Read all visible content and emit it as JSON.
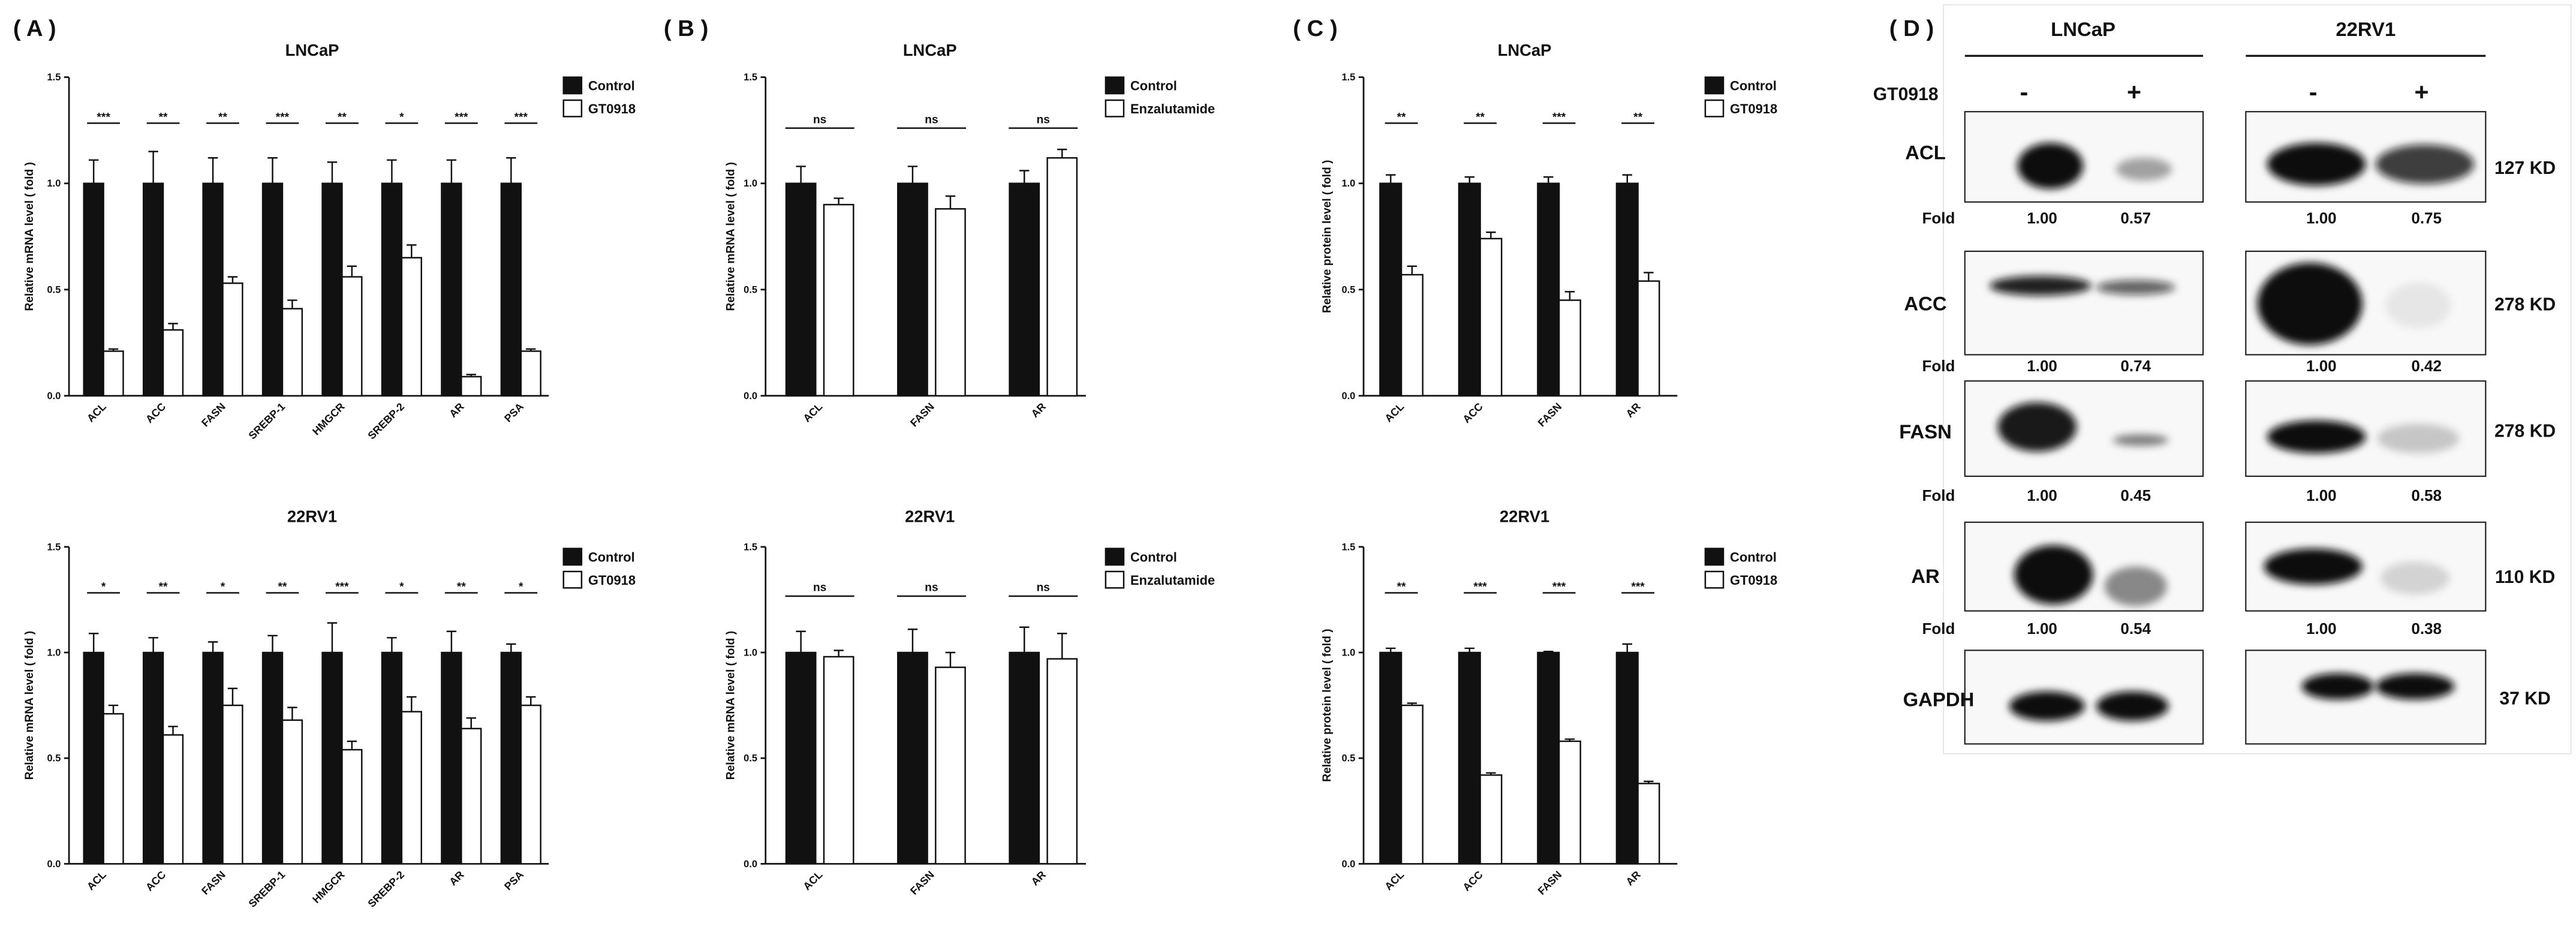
{
  "panels": {
    "A": "( A )",
    "B": "( B )",
    "C": "( C )",
    "D": "( D )"
  },
  "chart_data": [
    {
      "type": "bar",
      "title": "LNCaP",
      "xlabel": "",
      "ylabel": "Relative mRNA level ( fold )",
      "ylim": [
        0,
        1.5
      ],
      "yticks": [
        "0.0",
        "0.5",
        "1.0",
        "1.5"
      ],
      "legend": "top-right",
      "categories": [
        "ACL",
        "ACC",
        "FASN",
        "SREBP-1",
        "HMGCR",
        "SREBP-2",
        "AR",
        "PSA"
      ],
      "series": [
        {
          "name": "Control",
          "color": "#111111",
          "values": [
            1.0,
            1.0,
            1.0,
            1.0,
            1.0,
            1.0,
            1.0,
            1.0
          ],
          "errors": [
            0.11,
            0.15,
            0.12,
            0.12,
            0.1,
            0.11,
            0.11,
            0.12
          ]
        },
        {
          "name": "GT0918",
          "color": "#ffffff",
          "values": [
            0.21,
            0.31,
            0.53,
            0.41,
            0.56,
            0.65,
            0.09,
            0.21
          ],
          "errors": [
            0.01,
            0.03,
            0.03,
            0.04,
            0.05,
            0.06,
            0.01,
            0.01
          ]
        }
      ],
      "significance": [
        "***",
        "**",
        "**",
        "***",
        "**",
        "*",
        "***",
        "***"
      ]
    },
    {
      "type": "bar",
      "title": "22RV1",
      "xlabel": "",
      "ylabel": "Relative mRNA level ( fold )",
      "ylim": [
        0,
        1.5
      ],
      "yticks": [
        "0.0",
        "0.5",
        "1.0",
        "1.5"
      ],
      "legend": "top-right",
      "categories": [
        "ACL",
        "ACC",
        "FASN",
        "SREBP-1",
        "HMGCR",
        "SREBP-2",
        "AR",
        "PSA"
      ],
      "series": [
        {
          "name": "Control",
          "color": "#111111",
          "values": [
            1.0,
            1.0,
            1.0,
            1.0,
            1.0,
            1.0,
            1.0,
            1.0
          ],
          "errors": [
            0.09,
            0.07,
            0.05,
            0.08,
            0.14,
            0.07,
            0.1,
            0.04
          ]
        },
        {
          "name": "GT0918",
          "color": "#ffffff",
          "values": [
            0.71,
            0.61,
            0.75,
            0.68,
            0.54,
            0.72,
            0.64,
            0.75
          ],
          "errors": [
            0.04,
            0.04,
            0.08,
            0.06,
            0.04,
            0.07,
            0.05,
            0.04
          ]
        }
      ],
      "significance": [
        "*",
        "**",
        "*",
        "**",
        "***",
        "*",
        "**",
        "*"
      ]
    },
    {
      "type": "bar",
      "title": "LNCaP",
      "xlabel": "",
      "ylabel": "Relative mRNA level ( fold )",
      "ylim": [
        0,
        1.5
      ],
      "yticks": [
        "0.0",
        "0.5",
        "1.0",
        "1.5"
      ],
      "legend": "top-right",
      "categories": [
        "ACL",
        "FASN",
        "AR"
      ],
      "series": [
        {
          "name": "Control",
          "color": "#111111",
          "values": [
            1.0,
            1.0,
            1.0
          ],
          "errors": [
            0.08,
            0.08,
            0.06
          ]
        },
        {
          "name": "Enzalutamide",
          "color": "#ffffff",
          "values": [
            0.9,
            0.88,
            1.12
          ],
          "errors": [
            0.03,
            0.06,
            0.04
          ]
        }
      ],
      "significance": [
        "ns",
        "ns",
        "ns"
      ]
    },
    {
      "type": "bar",
      "title": "22RV1",
      "xlabel": "",
      "ylabel": "Relative mRNA level ( fold )",
      "ylim": [
        0,
        1.5
      ],
      "yticks": [
        "0.0",
        "0.5",
        "1.0",
        "1.5"
      ],
      "legend": "top-right",
      "categories": [
        "ACL",
        "FASN",
        "AR"
      ],
      "series": [
        {
          "name": "Control",
          "color": "#111111",
          "values": [
            1.0,
            1.0,
            1.0
          ],
          "errors": [
            0.1,
            0.11,
            0.12
          ]
        },
        {
          "name": "Enzalutamide",
          "color": "#ffffff",
          "values": [
            0.98,
            0.93,
            0.97
          ],
          "errors": [
            0.03,
            0.07,
            0.12
          ]
        }
      ],
      "significance": [
        "ns",
        "ns",
        "ns"
      ]
    },
    {
      "type": "bar",
      "title": "LNCaP",
      "xlabel": "",
      "ylabel": "Relative protein level ( fold )",
      "ylim": [
        0,
        1.5
      ],
      "yticks": [
        "0.0",
        "0.5",
        "1.0",
        "1.5"
      ],
      "legend": "top-right",
      "categories": [
        "ACL",
        "ACC",
        "FASN",
        "AR"
      ],
      "series": [
        {
          "name": "Control",
          "color": "#111111",
          "values": [
            1.0,
            1.0,
            1.0,
            1.0
          ],
          "errors": [
            0.04,
            0.03,
            0.03,
            0.04
          ]
        },
        {
          "name": "GT0918",
          "color": "#ffffff",
          "values": [
            0.57,
            0.74,
            0.45,
            0.54
          ],
          "errors": [
            0.04,
            0.03,
            0.04,
            0.04
          ]
        }
      ],
      "significance": [
        "**",
        "**",
        "***",
        "**"
      ]
    },
    {
      "type": "bar",
      "title": "22RV1",
      "xlabel": "",
      "ylabel": "Relative protein level ( fold )",
      "ylim": [
        0,
        1.5
      ],
      "yticks": [
        "0.0",
        "0.5",
        "1.0",
        "1.5"
      ],
      "legend": "top-right",
      "categories": [
        "ACL",
        "ACC",
        "FASN",
        "AR"
      ],
      "series": [
        {
          "name": "Control",
          "color": "#111111",
          "values": [
            1.0,
            1.0,
            1.0,
            1.0
          ],
          "errors": [
            0.02,
            0.02,
            0.005,
            0.04
          ]
        },
        {
          "name": "GT0918",
          "color": "#ffffff",
          "values": [
            0.75,
            0.42,
            0.58,
            0.38
          ],
          "errors": [
            0.01,
            0.01,
            0.01,
            0.01
          ]
        }
      ],
      "significance": [
        "**",
        "***",
        "***",
        "***"
      ]
    }
  ],
  "blot": {
    "treatment_label": "GT0918",
    "cell_lines": [
      {
        "name": "LNCaP",
        "lanes": [
          "-",
          "+"
        ]
      },
      {
        "name": "22RV1",
        "lanes": [
          "-",
          "+"
        ]
      }
    ],
    "rows": [
      {
        "protein": "ACL",
        "size": "127 KD",
        "fold_label": "Fold",
        "fold": [
          "1.00",
          "0.57",
          "1.00",
          "0.75"
        ]
      },
      {
        "protein": "ACC",
        "size": "278 KD",
        "fold_label": "Fold",
        "fold": [
          "1.00",
          "0.74",
          "1.00",
          "0.42"
        ]
      },
      {
        "protein": "FASN",
        "size": "278 KD",
        "fold_label": "Fold",
        "fold": [
          "1.00",
          "0.45",
          "1.00",
          "0.58"
        ]
      },
      {
        "protein": "AR",
        "size": "110 KD",
        "fold_label": "Fold",
        "fold": [
          "1.00",
          "0.54",
          "1.00",
          "0.38"
        ]
      },
      {
        "protein": "GAPDH",
        "size": "37 KD"
      }
    ]
  }
}
